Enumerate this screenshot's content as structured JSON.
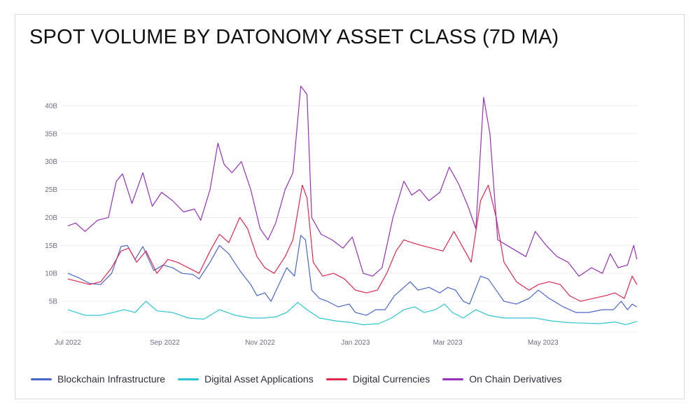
{
  "title": "SPOT VOLUME BY DATONOMY ASSET CLASS (7D MA)",
  "chart_data": {
    "type": "line",
    "title": "SPOT VOLUME BY DATONOMY ASSET CLASS (7D MA)",
    "xlabel": "",
    "ylabel": "",
    "x_range": [
      "2022-06-27",
      "2023-07-01"
    ],
    "ylim": [
      0,
      45
    ],
    "y_unit": "B",
    "y_ticks": [
      {
        "value": 5,
        "label": "5B"
      },
      {
        "value": 10,
        "label": "10B"
      },
      {
        "value": 15,
        "label": "15B"
      },
      {
        "value": 20,
        "label": "20B"
      },
      {
        "value": 25,
        "label": "25B"
      },
      {
        "value": 30,
        "label": "30B"
      },
      {
        "value": 35,
        "label": "35B"
      },
      {
        "value": 40,
        "label": "40B"
      }
    ],
    "x_ticks": [
      {
        "date": "2022-07-01",
        "label": "Jul 2022"
      },
      {
        "date": "2022-09-01",
        "label": "Sep 2022"
      },
      {
        "date": "2022-11-01",
        "label": "Nov 2022"
      },
      {
        "date": "2023-01-01",
        "label": "Jan 2023"
      },
      {
        "date": "2023-03-01",
        "label": "Mar 2023"
      },
      {
        "date": "2023-05-01",
        "label": "May 2023"
      }
    ],
    "grid": true,
    "legend_position": "bottom",
    "series": [
      {
        "name": "Blockchain Infrastructure",
        "color": "#4a66c8",
        "points": [
          [
            "2022-07-01",
            10
          ],
          [
            "2022-07-08",
            9.2
          ],
          [
            "2022-07-15",
            8.2
          ],
          [
            "2022-07-22",
            8
          ],
          [
            "2022-07-29",
            10
          ],
          [
            "2022-08-04",
            14.8
          ],
          [
            "2022-08-08",
            15
          ],
          [
            "2022-08-13",
            12.5
          ],
          [
            "2022-08-18",
            14.8
          ],
          [
            "2022-08-25",
            10.5
          ],
          [
            "2022-08-31",
            11.5
          ],
          [
            "2022-09-06",
            11
          ],
          [
            "2022-09-12",
            10
          ],
          [
            "2022-09-19",
            9.8
          ],
          [
            "2022-09-23",
            9
          ],
          [
            "2022-09-30",
            12
          ],
          [
            "2022-10-06",
            15
          ],
          [
            "2022-10-12",
            13.5
          ],
          [
            "2022-10-19",
            10.5
          ],
          [
            "2022-10-26",
            8
          ],
          [
            "2022-10-30",
            6
          ],
          [
            "2022-11-04",
            6.5
          ],
          [
            "2022-11-08",
            5
          ],
          [
            "2022-11-13",
            8
          ],
          [
            "2022-11-18",
            11
          ],
          [
            "2022-11-23",
            9.5
          ],
          [
            "2022-11-27",
            16.8
          ],
          [
            "2022-11-30",
            16
          ],
          [
            "2022-12-04",
            7
          ],
          [
            "2022-12-09",
            5.5
          ],
          [
            "2022-12-14",
            5
          ],
          [
            "2022-12-21",
            4
          ],
          [
            "2022-12-28",
            4.5
          ],
          [
            "2023-01-01",
            3
          ],
          [
            "2023-01-08",
            2.5
          ],
          [
            "2023-01-14",
            3.5
          ],
          [
            "2023-01-20",
            3.5
          ],
          [
            "2023-01-26",
            6
          ],
          [
            "2023-02-01",
            7.5
          ],
          [
            "2023-02-05",
            8.5
          ],
          [
            "2023-02-10",
            7
          ],
          [
            "2023-02-17",
            7.5
          ],
          [
            "2023-02-24",
            6.5
          ],
          [
            "2023-03-01",
            7.5
          ],
          [
            "2023-03-06",
            7
          ],
          [
            "2023-03-11",
            5
          ],
          [
            "2023-03-15",
            4.5
          ],
          [
            "2023-03-22",
            9.5
          ],
          [
            "2023-03-27",
            9
          ],
          [
            "2023-04-01",
            7
          ],
          [
            "2023-04-06",
            5
          ],
          [
            "2023-04-14",
            4.5
          ],
          [
            "2023-04-22",
            5.5
          ],
          [
            "2023-04-28",
            7
          ],
          [
            "2023-05-05",
            5.5
          ],
          [
            "2023-05-14",
            4
          ],
          [
            "2023-05-22",
            3
          ],
          [
            "2023-05-30",
            3
          ],
          [
            "2023-06-08",
            3.5
          ],
          [
            "2023-06-15",
            3.5
          ],
          [
            "2023-06-20",
            5
          ],
          [
            "2023-06-24",
            3.5
          ],
          [
            "2023-06-27",
            4.5
          ],
          [
            "2023-06-30",
            4
          ]
        ]
      },
      {
        "name": "Digital Asset Applications",
        "color": "#2fc4d3",
        "points": [
          [
            "2022-07-01",
            3.5
          ],
          [
            "2022-07-12",
            2.5
          ],
          [
            "2022-07-22",
            2.5
          ],
          [
            "2022-07-30",
            3
          ],
          [
            "2022-08-06",
            3.5
          ],
          [
            "2022-08-13",
            3
          ],
          [
            "2022-08-20",
            5
          ],
          [
            "2022-08-27",
            3.3
          ],
          [
            "2022-09-06",
            3
          ],
          [
            "2022-09-16",
            2
          ],
          [
            "2022-09-26",
            1.8
          ],
          [
            "2022-10-06",
            3.5
          ],
          [
            "2022-10-16",
            2.5
          ],
          [
            "2022-10-26",
            2
          ],
          [
            "2022-11-03",
            2
          ],
          [
            "2022-11-11",
            2.2
          ],
          [
            "2022-11-18",
            3
          ],
          [
            "2022-11-25",
            4.8
          ],
          [
            "2022-12-01",
            3.5
          ],
          [
            "2022-12-09",
            2
          ],
          [
            "2022-12-19",
            1.5
          ],
          [
            "2022-12-29",
            1.2
          ],
          [
            "2023-01-06",
            0.8
          ],
          [
            "2023-01-16",
            1
          ],
          [
            "2023-01-24",
            2
          ],
          [
            "2023-02-01",
            3.5
          ],
          [
            "2023-02-08",
            4
          ],
          [
            "2023-02-14",
            3
          ],
          [
            "2023-02-21",
            3.5
          ],
          [
            "2023-02-27",
            4.5
          ],
          [
            "2023-03-04",
            3
          ],
          [
            "2023-03-11",
            2
          ],
          [
            "2023-03-19",
            3.5
          ],
          [
            "2023-03-27",
            2.5
          ],
          [
            "2023-04-06",
            2
          ],
          [
            "2023-04-16",
            2
          ],
          [
            "2023-04-26",
            2
          ],
          [
            "2023-05-06",
            1.5
          ],
          [
            "2023-05-16",
            1.2
          ],
          [
            "2023-05-26",
            1.1
          ],
          [
            "2023-06-06",
            1
          ],
          [
            "2023-06-16",
            1.3
          ],
          [
            "2023-06-23",
            0.8
          ],
          [
            "2023-06-30",
            1.4
          ]
        ]
      },
      {
        "name": "Digital Currencies",
        "color": "#e0284e",
        "points": [
          [
            "2022-07-01",
            9
          ],
          [
            "2022-07-08",
            8.5
          ],
          [
            "2022-07-15",
            8
          ],
          [
            "2022-07-22",
            8.5
          ],
          [
            "2022-07-29",
            11
          ],
          [
            "2022-08-04",
            14
          ],
          [
            "2022-08-09",
            14.5
          ],
          [
            "2022-08-14",
            12
          ],
          [
            "2022-08-20",
            14
          ],
          [
            "2022-08-27",
            10
          ],
          [
            "2022-09-03",
            12.5
          ],
          [
            "2022-09-09",
            12
          ],
          [
            "2022-09-16",
            11
          ],
          [
            "2022-09-23",
            10
          ],
          [
            "2022-09-30",
            14
          ],
          [
            "2022-10-06",
            17
          ],
          [
            "2022-10-12",
            15.5
          ],
          [
            "2022-10-19",
            20
          ],
          [
            "2022-10-24",
            18
          ],
          [
            "2022-10-30",
            13
          ],
          [
            "2022-11-04",
            11
          ],
          [
            "2022-11-10",
            10
          ],
          [
            "2022-11-17",
            13
          ],
          [
            "2022-11-22",
            16
          ],
          [
            "2022-11-28",
            25.8
          ],
          [
            "2022-12-01",
            23.5
          ],
          [
            "2022-12-05",
            12
          ],
          [
            "2022-12-11",
            9.5
          ],
          [
            "2022-12-18",
            10
          ],
          [
            "2022-12-25",
            9
          ],
          [
            "2023-01-01",
            7
          ],
          [
            "2023-01-08",
            6.5
          ],
          [
            "2023-01-15",
            7
          ],
          [
            "2023-01-21",
            10
          ],
          [
            "2023-01-27",
            14
          ],
          [
            "2023-02-01",
            16
          ],
          [
            "2023-02-06",
            15.5
          ],
          [
            "2023-02-12",
            15
          ],
          [
            "2023-02-19",
            14.5
          ],
          [
            "2023-02-26",
            14
          ],
          [
            "2023-03-05",
            17.5
          ],
          [
            "2023-03-10",
            15
          ],
          [
            "2023-03-16",
            12
          ],
          [
            "2023-03-22",
            23
          ],
          [
            "2023-03-27",
            25.8
          ],
          [
            "2023-04-01",
            20
          ],
          [
            "2023-04-06",
            12
          ],
          [
            "2023-04-14",
            8.5
          ],
          [
            "2023-04-22",
            7
          ],
          [
            "2023-04-28",
            8
          ],
          [
            "2023-05-05",
            8.5
          ],
          [
            "2023-05-12",
            8
          ],
          [
            "2023-05-18",
            6
          ],
          [
            "2023-05-25",
            5
          ],
          [
            "2023-06-02",
            5.5
          ],
          [
            "2023-06-10",
            6
          ],
          [
            "2023-06-16",
            6.5
          ],
          [
            "2023-06-22",
            5.5
          ],
          [
            "2023-06-27",
            9.5
          ],
          [
            "2023-06-30",
            8
          ]
        ]
      },
      {
        "name": "On Chain Derivatives",
        "color": "#9432b8",
        "points": [
          [
            "2022-07-01",
            18.5
          ],
          [
            "2022-07-06",
            19
          ],
          [
            "2022-07-12",
            17.5
          ],
          [
            "2022-07-20",
            19.5
          ],
          [
            "2022-07-27",
            20
          ],
          [
            "2022-08-01",
            26.5
          ],
          [
            "2022-08-05",
            27.8
          ],
          [
            "2022-08-11",
            22.5
          ],
          [
            "2022-08-18",
            28
          ],
          [
            "2022-08-24",
            22
          ],
          [
            "2022-08-30",
            24.5
          ],
          [
            "2022-09-06",
            23
          ],
          [
            "2022-09-13",
            21
          ],
          [
            "2022-09-20",
            21.5
          ],
          [
            "2022-09-24",
            19.5
          ],
          [
            "2022-09-30",
            25
          ],
          [
            "2022-10-05",
            33.3
          ],
          [
            "2022-10-09",
            29.5
          ],
          [
            "2022-10-14",
            28
          ],
          [
            "2022-10-20",
            30
          ],
          [
            "2022-10-26",
            25
          ],
          [
            "2022-11-01",
            18
          ],
          [
            "2022-11-06",
            16
          ],
          [
            "2022-11-11",
            19
          ],
          [
            "2022-11-17",
            25
          ],
          [
            "2022-11-22",
            28
          ],
          [
            "2022-11-27",
            43.5
          ],
          [
            "2022-12-01",
            42
          ],
          [
            "2022-12-04",
            20
          ],
          [
            "2022-12-10",
            17
          ],
          [
            "2022-12-17",
            16
          ],
          [
            "2022-12-24",
            14.5
          ],
          [
            "2022-12-30",
            16.5
          ],
          [
            "2023-01-06",
            10
          ],
          [
            "2023-01-12",
            9.5
          ],
          [
            "2023-01-18",
            11
          ],
          [
            "2023-01-25",
            20
          ],
          [
            "2023-02-01",
            26.5
          ],
          [
            "2023-02-06",
            24
          ],
          [
            "2023-02-11",
            25
          ],
          [
            "2023-02-17",
            23
          ],
          [
            "2023-02-24",
            24.5
          ],
          [
            "2023-03-02",
            29
          ],
          [
            "2023-03-08",
            26
          ],
          [
            "2023-03-14",
            22
          ],
          [
            "2023-03-19",
            18
          ],
          [
            "2023-03-24",
            41.5
          ],
          [
            "2023-03-28",
            35
          ],
          [
            "2023-04-02",
            16
          ],
          [
            "2023-04-08",
            15
          ],
          [
            "2023-04-14",
            14
          ],
          [
            "2023-04-20",
            13
          ],
          [
            "2023-04-26",
            17.5
          ],
          [
            "2023-05-03",
            15
          ],
          [
            "2023-05-10",
            13
          ],
          [
            "2023-05-17",
            12
          ],
          [
            "2023-05-24",
            9.5
          ],
          [
            "2023-06-01",
            11
          ],
          [
            "2023-06-08",
            10
          ],
          [
            "2023-06-13",
            13.5
          ],
          [
            "2023-06-18",
            11
          ],
          [
            "2023-06-24",
            11.5
          ],
          [
            "2023-06-28",
            15
          ],
          [
            "2023-06-30",
            12.5
          ]
        ]
      }
    ]
  }
}
